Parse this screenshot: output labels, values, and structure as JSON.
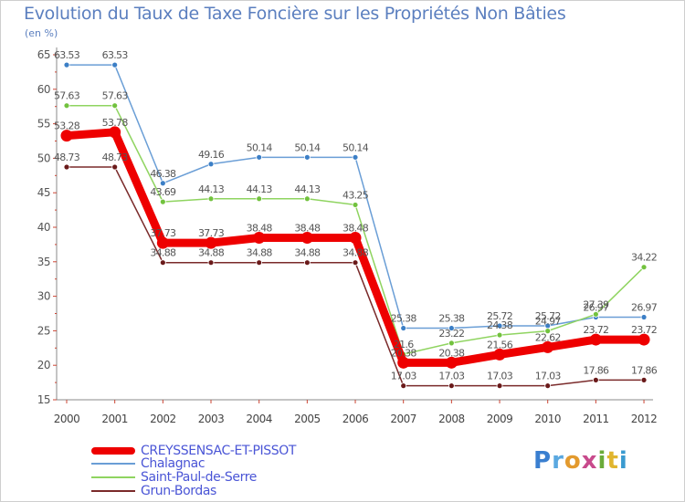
{
  "title": "Evolution du Taux de Taxe Foncière sur les Propriétés Non Bâties",
  "unit": "(en %)",
  "logo": "Proxiti",
  "chart_data": {
    "type": "line",
    "title": "Evolution du Taux de Taxe Foncière sur les Propriétés Non Bâties",
    "ylabel": "(en %)",
    "xlabel": "",
    "ylim": [
      15,
      65
    ],
    "yticks": [
      "15",
      "20",
      "25",
      "30",
      "35",
      "40",
      "45",
      "50",
      "55",
      "60",
      "65"
    ],
    "x": [
      "2000",
      "2001",
      "2002",
      "2003",
      "2004",
      "2005",
      "2006",
      "2007",
      "2008",
      "2009",
      "2010",
      "2011",
      "2012"
    ],
    "grid": false,
    "legend_position": "bottom-left",
    "series": [
      {
        "name": "Chalagnac",
        "color": "#6a9ed6",
        "marker": "#3c7fc6",
        "values": [
          63.53,
          63.53,
          46.38,
          49.16,
          50.14,
          50.14,
          50.14,
          25.38,
          25.38,
          25.72,
          25.72,
          26.97,
          26.97
        ],
        "labels": [
          "63.53",
          "63.53",
          "46.38",
          "49.16",
          "50.14",
          "50.14",
          "50.14",
          "25.38",
          "25.38",
          "25.72",
          "25.72",
          "26.97",
          "26.97"
        ]
      },
      {
        "name": "Saint-Paul-de-Serre",
        "color": "#8fd460",
        "marker": "#72c23e",
        "values": [
          57.63,
          57.63,
          43.69,
          44.13,
          44.13,
          44.13,
          43.25,
          21.6,
          23.22,
          24.38,
          24.97,
          27.39,
          34.22
        ],
        "labels": [
          "57.63",
          "57.63",
          "43.69",
          "44.13",
          "44.13",
          "44.13",
          "43.25",
          "21.6",
          "23.22",
          "24.38",
          "24.97",
          "27.39",
          "34.22"
        ]
      },
      {
        "name": "Grun-Bordas",
        "color": "#7a2a2a",
        "marker": "#6a1a1a",
        "values": [
          48.73,
          48.73,
          34.88,
          34.88,
          34.88,
          34.88,
          34.88,
          17.03,
          17.03,
          17.03,
          17.03,
          17.86,
          17.86
        ],
        "labels": [
          "48.73",
          "48.73",
          "34.88",
          "34.88",
          "34.88",
          "34.88",
          "34.88",
          "17.03",
          "17.03",
          "17.03",
          "17.03",
          "17.86",
          "17.86"
        ]
      },
      {
        "name": "CREYSSENSAC-ET-PISSOT",
        "color": "#ee0000",
        "marker": "#ee0000",
        "values": [
          53.28,
          53.78,
          37.73,
          37.73,
          38.48,
          38.48,
          38.48,
          20.38,
          20.38,
          21.56,
          22.62,
          23.72,
          23.72
        ],
        "labels": [
          "53.28",
          "53.78",
          "37.73",
          "37.73",
          "38.48",
          "38.48",
          "38.48",
          "20.38",
          "20.38",
          "21.56",
          "22.62",
          "23.72",
          "23.72"
        ]
      }
    ]
  }
}
